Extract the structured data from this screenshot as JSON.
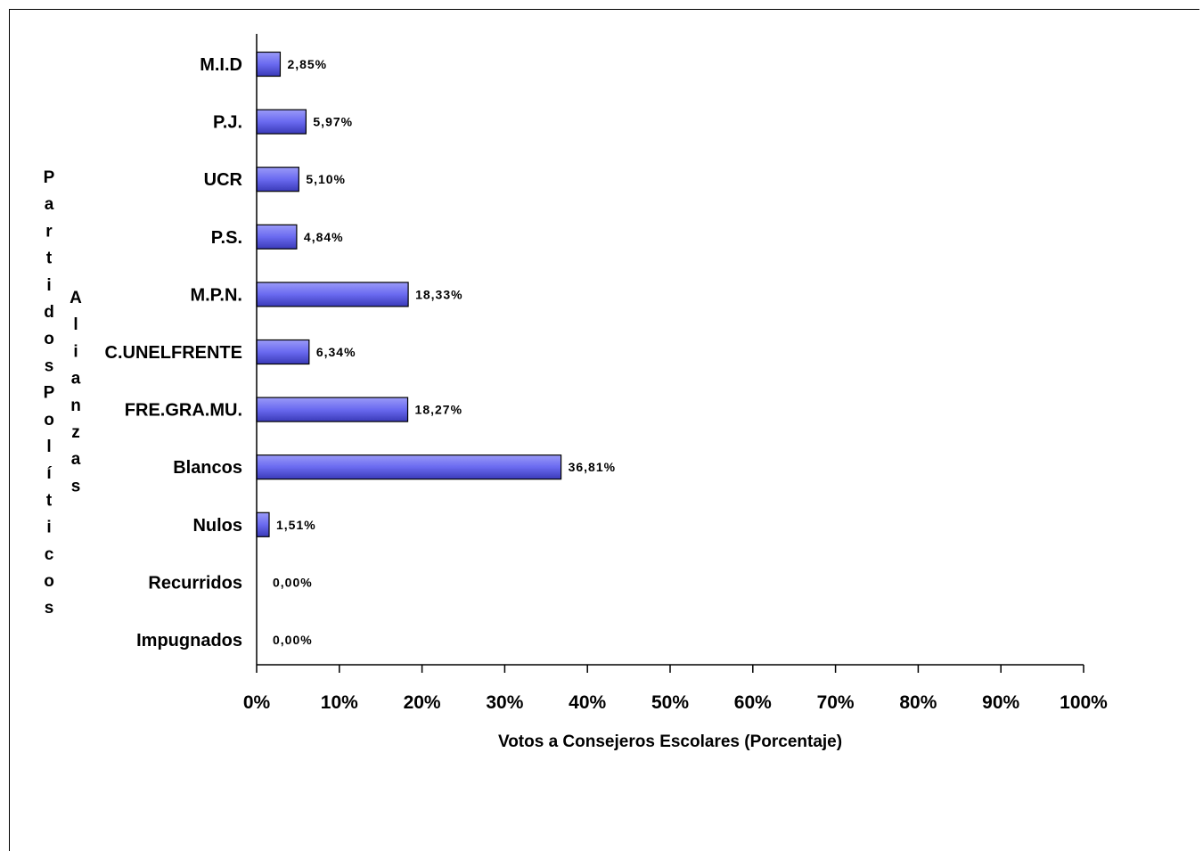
{
  "chart_data": {
    "type": "bar",
    "orientation": "horizontal",
    "categories": [
      "M.I.D",
      "P.J.",
      "UCR",
      "P.S.",
      "M.P.N.",
      "C.UNELFRENTE",
      "FRE.GRA.MU.",
      "Blancos",
      "Nulos",
      "Recurridos",
      "Impugnados"
    ],
    "values": [
      2.85,
      5.97,
      5.1,
      4.84,
      18.33,
      6.34,
      18.27,
      36.81,
      1.51,
      0.0,
      0.0
    ],
    "data_labels": [
      "2,85%",
      "5,97%",
      "5,10%",
      "4,84%",
      "18,33%",
      "6,34%",
      "18,27%",
      "36,81%",
      "1,51%",
      "0,00%",
      "0,00%"
    ],
    "xlim": [
      0,
      100
    ],
    "x_ticks": [
      "0%",
      "10%",
      "20%",
      "30%",
      "40%",
      "50%",
      "60%",
      "70%",
      "80%",
      "90%",
      "100%"
    ],
    "xlabel": "Votos a Consejeros Escolares (Porcentaje)",
    "ylabel_1": "PartidosPolíticos",
    "ylabel_2": "Alianzas",
    "bar_color": "#6666ee",
    "grid": false,
    "legend": "none"
  }
}
